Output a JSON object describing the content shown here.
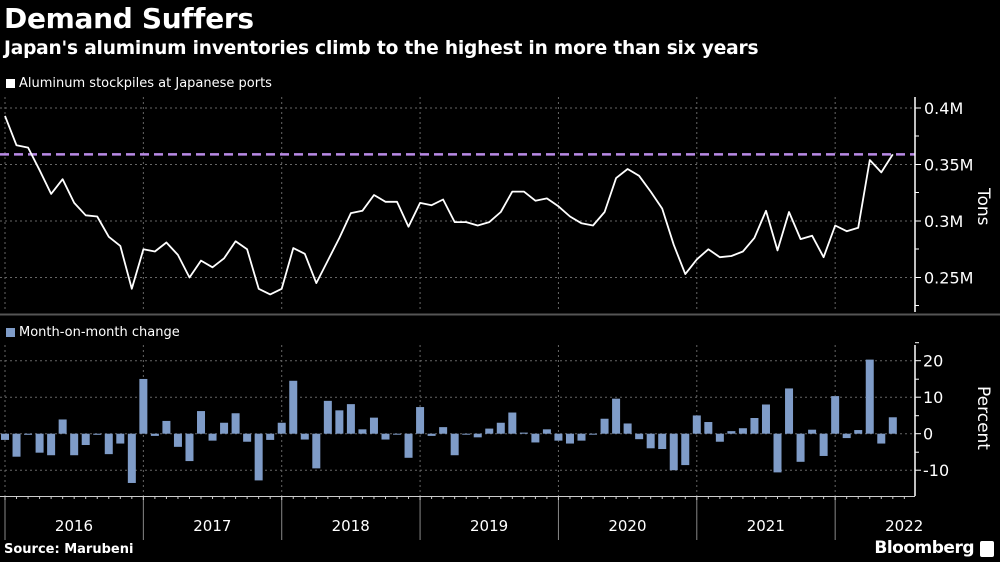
{
  "header": {
    "title": "Demand Suffers",
    "subtitle": "Japan's aluminum inventories climb to the highest in more than six years"
  },
  "footer": {
    "source": "Source: Marubeni",
    "brand": "Bloomberg"
  },
  "colors": {
    "background": "#000000",
    "line": "#ffffff",
    "bars": "#7f9cc8",
    "reference_line": "#b98ae6"
  },
  "chart_data": [
    {
      "type": "line",
      "legend": "Aluminum stockpiles at Japanese ports",
      "ylabel": "Tons",
      "y_ticks": [
        "0.25M",
        "0.3M",
        "0.35M",
        "0.4M"
      ],
      "y_tick_values": [
        250000,
        300000,
        350000,
        400000
      ],
      "ylim": [
        222000,
        410000
      ],
      "grid": true,
      "x_start": "2016-01",
      "x_end": "2022-06",
      "x_frequency": "monthly",
      "x_tick_labels": [
        "2016",
        "2017",
        "2018",
        "2019",
        "2020",
        "2021",
        "2022"
      ],
      "reference_line": {
        "value": 359000,
        "style": "dashed"
      },
      "series": [
        {
          "values": [
            393000,
            367000,
            365000,
            345000,
            324000,
            337000,
            316000,
            305000,
            304000,
            286000,
            278000,
            240000,
            275000,
            273000,
            281000,
            270000,
            250000,
            265000,
            259000,
            267000,
            282000,
            275000,
            240000,
            235000,
            240000,
            276000,
            271000,
            245000,
            265000,
            285000,
            307000,
            309000,
            323000,
            317000,
            317000,
            295000,
            316000,
            314000,
            319000,
            299000,
            299000,
            296000,
            299000,
            308000,
            326000,
            326000,
            318000,
            320000,
            313000,
            304000,
            298000,
            296000,
            308000,
            338000,
            346000,
            340000,
            326000,
            311000,
            279000,
            253000,
            266000,
            275000,
            268000,
            269000,
            273000,
            285000,
            309000,
            274000,
            308000,
            284000,
            287000,
            268000,
            296000,
            291000,
            294000,
            354000,
            343000,
            359000
          ]
        }
      ]
    },
    {
      "type": "bar",
      "legend": "Month-on-month change",
      "ylabel": "Percent",
      "y_ticks": [
        "-10",
        "0",
        "10",
        "20"
      ],
      "y_tick_values": [
        -10,
        0,
        10,
        20
      ],
      "ylim": [
        -17,
        24
      ],
      "grid": true,
      "x_start": "2016-01",
      "x_end": "2022-06",
      "x_frequency": "monthly",
      "series": [
        {
          "values": [
            -1.7,
            -6.3,
            -0.3,
            -5.2,
            -5.9,
            3.9,
            -5.9,
            -3.1,
            -0.3,
            -5.6,
            -2.7,
            -13.5,
            15.0,
            -0.6,
            3.5,
            -3.6,
            -7.5,
            6.2,
            -1.9,
            3.0,
            5.6,
            -2.2,
            -12.8,
            -1.7,
            3.0,
            14.5,
            -1.6,
            -9.5,
            9.0,
            6.4,
            8.1,
            1.2,
            4.4,
            -1.6,
            -0.2,
            -6.6,
            7.3,
            -0.6,
            1.8,
            -5.9,
            -0.2,
            -1.0,
            1.4,
            3.0,
            5.8,
            0.3,
            -2.4,
            1.2,
            -1.9,
            -2.7,
            -1.9,
            -0.2,
            4.1,
            9.6,
            2.8,
            -1.5,
            -4.0,
            -4.2,
            -10.0,
            -8.6,
            5.0,
            3.2,
            -2.2,
            0.7,
            1.5,
            4.3,
            8.0,
            -10.6,
            12.4,
            -7.7,
            1.1,
            -6.1,
            10.3,
            -1.2,
            1.0,
            20.3,
            -2.7,
            4.5
          ]
        }
      ]
    }
  ]
}
